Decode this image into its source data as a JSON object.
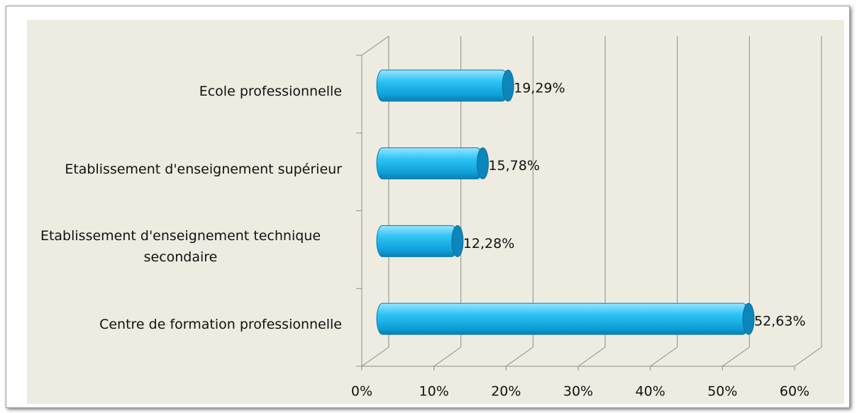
{
  "chart_data": {
    "type": "bar",
    "orientation": "horizontal",
    "categories": [
      "Ecole professionnelle",
      "Etablissement d'enseignement supérieur",
      "Etablissement d'enseignement technique secondaire",
      "Centre de formation professionnelle"
    ],
    "values": [
      19.29,
      15.78,
      12.28,
      52.63
    ],
    "value_labels": [
      "19,29%",
      "15,78%",
      "12,28%",
      "52,63%"
    ],
    "color": "#1ab2ea",
    "xlim": [
      0,
      60
    ],
    "xticks": [
      {
        "value": 0,
        "label": "0%"
      },
      {
        "value": 10,
        "label": "10%"
      },
      {
        "value": 20,
        "label": "20%"
      },
      {
        "value": 30,
        "label": "30%"
      },
      {
        "value": 40,
        "label": "40%"
      },
      {
        "value": 50,
        "label": "50%"
      },
      {
        "value": 60,
        "label": "60%"
      }
    ],
    "grid": true
  }
}
